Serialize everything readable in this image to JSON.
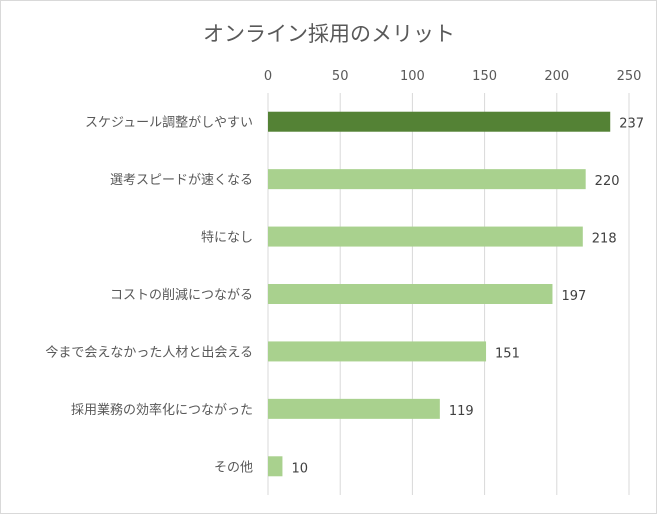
{
  "chart_data": {
    "type": "bar",
    "orientation": "horizontal",
    "title": "オンライン採用のメリット",
    "categories": [
      "スケジュール調整がしやすい",
      "選考スピードが速くなる",
      "特になし",
      "コストの削減につながる",
      "今まで会えなかった人材と出会える",
      "採用業務の効率化につながった",
      "その他"
    ],
    "values": [
      237,
      220,
      218,
      197,
      151,
      119,
      10
    ],
    "xlim": [
      0,
      250
    ],
    "ticks": [
      0,
      50,
      100,
      150,
      200,
      250
    ],
    "tick_labels": [
      "0",
      "50",
      "100",
      "150",
      "200",
      "250"
    ],
    "axis_position": "top",
    "grid": true,
    "data_labels": true,
    "colors": {
      "highlight": "#548235",
      "bar": "#a9d18e",
      "grid": "#d9d9d9",
      "text": "#595959"
    },
    "highlight_index": 0
  }
}
